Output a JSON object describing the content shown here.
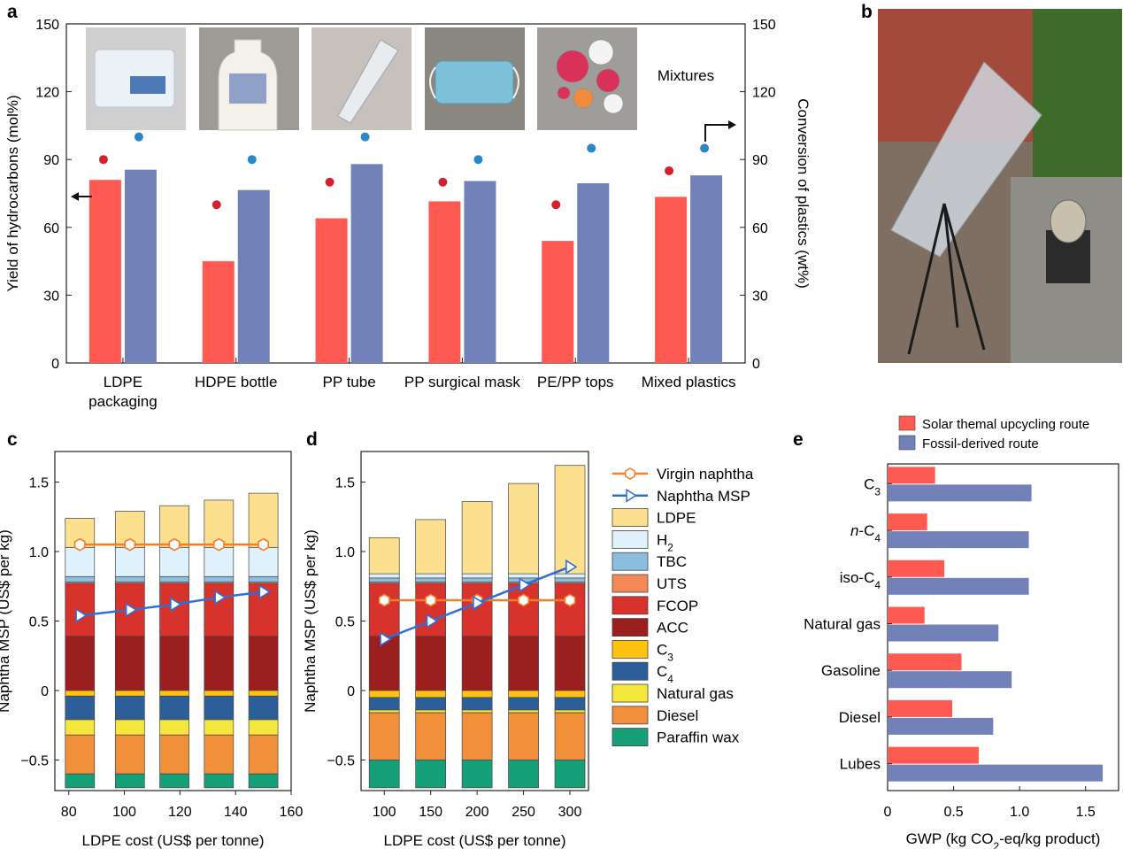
{
  "panel_labels": [
    "a",
    "b",
    "c",
    "d",
    "e"
  ],
  "colors": {
    "yield_bar": "#ff5a52",
    "conversion_bar": "#7282b8",
    "virgin_naphtha": "#f07f2a",
    "naphtha_msp": "#2e6fd6",
    "solar_route": "#ff5a52",
    "fossil_route": "#7282b8"
  },
  "chart_data": [
    {
      "panel": "a",
      "type": "bar",
      "ylabel": "Yield of hydrocarbons (mol%)",
      "ylabel_right": "Conversion of plastics (wt%)",
      "ylim": [
        0,
        150
      ],
      "yticks": [
        0,
        30,
        60,
        90,
        120,
        150
      ],
      "categories": [
        "LDPE packaging",
        "HDPE bottle",
        "PP tube",
        "PP surgical mask",
        "PE/PP tops",
        "Mixed plastics"
      ],
      "category_lines": [
        [
          "LDPE",
          "packaging"
        ],
        [
          "HDPE bottle"
        ],
        [
          "PP tube"
        ],
        [
          "PP surgical mask"
        ],
        [
          "PE/PP tops"
        ],
        [
          "Mixed plastics"
        ]
      ],
      "series": [
        {
          "axis": "left",
          "color": "#ff5a52",
          "values": [
            81,
            45,
            64,
            71.5,
            54,
            73.5
          ]
        },
        {
          "axis": "right",
          "color": "#7282b8",
          "values": [
            85.5,
            76.5,
            88,
            80.5,
            79.5,
            83
          ]
        }
      ],
      "dots": [
        {
          "color": "#d4202a",
          "values": [
            90,
            70,
            80,
            80,
            70,
            85
          ]
        },
        {
          "color": "#2a86c9",
          "values": [
            100,
            90,
            100,
            90,
            95,
            95
          ]
        }
      ],
      "photo_captions": [
        "Mixtures"
      ],
      "photos": [
        "packaging-bag",
        "lotion-bottle",
        "centrifuge-tube",
        "surgical-mask",
        "bottle-caps"
      ]
    },
    {
      "panel": "b",
      "type": "image",
      "description_icon": "solar-concentrator-photo"
    },
    {
      "panel": "c",
      "type": "stacked-bar",
      "xlabel": "LDPE cost (US$ per tonne)",
      "ylabel": "Naphtha MSP (US$ per kg)",
      "xlim": [
        75,
        160
      ],
      "ylim": [
        -0.72,
        1.72
      ],
      "xticks": [
        80,
        100,
        120,
        140,
        160
      ],
      "yticks": [
        -0.5,
        0,
        0.5,
        1.0,
        1.5
      ],
      "ytick_labels": [
        "−0.5",
        "0",
        "0.5",
        "1.0",
        "1.5"
      ],
      "x": [
        84,
        102,
        118,
        134,
        150
      ],
      "positive_stack": [
        {
          "name": "FCOP",
          "color": "#d8322c",
          "from": 0.39,
          "to": 0.77
        },
        {
          "name": "ACC",
          "color": "#9c1f1f",
          "from": 0,
          "to": 0.39
        },
        {
          "name": "UTS",
          "color": "#f58a58",
          "from": 0.77,
          "to": 0.78
        },
        {
          "name": "TBC",
          "color": "#8ebedf",
          "from": 0.78,
          "to": 0.82
        },
        {
          "name": "H2",
          "color": "#dff1fa",
          "from": 0.82,
          "to": 1.03
        }
      ],
      "ldpe_tops": [
        1.24,
        1.29,
        1.33,
        1.37,
        1.42
      ],
      "negative_stack": [
        {
          "name": "C3",
          "color": "#ffc20e",
          "from": 0,
          "to": -0.04
        },
        {
          "name": "C4",
          "color": "#2c5f99",
          "from": -0.04,
          "to": -0.21
        },
        {
          "name": "Natural gas",
          "color": "#f5e63c",
          "from": -0.21,
          "to": -0.32
        },
        {
          "name": "Diesel",
          "color": "#f18f3b",
          "from": -0.32,
          "to": -0.6
        },
        {
          "name": "Paraffin wax",
          "color": "#16a07a",
          "from": -0.6,
          "to": -0.7
        }
      ],
      "virgin_naphtha": [
        1.05,
        1.05,
        1.05,
        1.05,
        1.05
      ],
      "naphtha_msp": [
        0.54,
        0.58,
        0.62,
        0.67,
        0.71
      ]
    },
    {
      "panel": "d",
      "type": "stacked-bar",
      "xlabel": "LDPE cost (US$ per tonne)",
      "ylabel": "Naphtha MSP (US$ per kg)",
      "xlim": [
        75,
        320
      ],
      "ylim": [
        -0.72,
        1.72
      ],
      "xticks": [
        100,
        150,
        200,
        250,
        300
      ],
      "yticks": [
        -0.5,
        0,
        0.5,
        1.0,
        1.5
      ],
      "ytick_labels": [
        "−0.5",
        "0",
        "0.5",
        "1.0",
        "1.5"
      ],
      "x": [
        100,
        150,
        200,
        250,
        300
      ],
      "positive_stack": [
        {
          "name": "FCOP",
          "color": "#d8322c",
          "from": 0.39,
          "to": 0.77
        },
        {
          "name": "ACC",
          "color": "#9c1f1f",
          "from": 0,
          "to": 0.39
        },
        {
          "name": "UTS",
          "color": "#f58a58",
          "from": 0.77,
          "to": 0.78
        },
        {
          "name": "TBC",
          "color": "#8ebedf",
          "from": 0.78,
          "to": 0.81
        },
        {
          "name": "H2",
          "color": "#dff1fa",
          "from": 0.81,
          "to": 0.84
        }
      ],
      "ldpe_tops": [
        1.1,
        1.23,
        1.36,
        1.49,
        1.62
      ],
      "negative_stack": [
        {
          "name": "C3",
          "color": "#ffc20e",
          "from": 0,
          "to": -0.05
        },
        {
          "name": "C4",
          "color": "#2c5f99",
          "from": -0.05,
          "to": -0.14
        },
        {
          "name": "Natural gas",
          "color": "#f5e63c",
          "from": -0.14,
          "to": -0.16
        },
        {
          "name": "Diesel",
          "color": "#f18f3b",
          "from": -0.16,
          "to": -0.5
        },
        {
          "name": "Paraffin wax",
          "color": "#16a07a",
          "from": -0.5,
          "to": -0.7
        }
      ],
      "virgin_naphtha": [
        0.65,
        0.65,
        0.65,
        0.65,
        0.65
      ],
      "naphtha_msp": [
        0.37,
        0.5,
        0.63,
        0.76,
        0.89
      ]
    },
    {
      "panel": "e",
      "type": "bar",
      "orientation": "horizontal",
      "xlabel": "GWP (kg CO2-eq/kg product)",
      "xlim": [
        0,
        1.75
      ],
      "xticks": [
        0,
        0.5,
        1.0,
        1.5
      ],
      "xtick_labels": [
        "0",
        "0.5",
        "1.0",
        "1.5"
      ],
      "categories": [
        "C3",
        "n-C4",
        "iso-C4",
        "Natural gas",
        "Gasoline",
        "Diesel",
        "Lubes"
      ],
      "series": [
        {
          "name": "Solar themal upcycling route",
          "color": "#ff5a52",
          "values": [
            0.36,
            0.3,
            0.43,
            0.28,
            0.56,
            0.49,
            0.69
          ]
        },
        {
          "name": "Fossil-derived route",
          "color": "#7282b8",
          "values": [
            1.09,
            1.07,
            1.07,
            0.84,
            0.94,
            0.8,
            1.63
          ]
        }
      ],
      "legend_placement": "top"
    }
  ],
  "legend_cd": [
    {
      "key": "virgin_naphtha",
      "label": "Virgin naphtha",
      "kind": "line-hex",
      "color": "#f07f2a"
    },
    {
      "key": "naphtha_msp",
      "label": "Naphtha MSP",
      "kind": "line-tri",
      "color": "#2e6fd6"
    },
    {
      "key": "ldpe",
      "label": "LDPE",
      "kind": "box",
      "color": "#fde08e"
    },
    {
      "key": "h2",
      "label": "H2",
      "sub": "2",
      "base": "H",
      "kind": "box",
      "color": "#dff1fa"
    },
    {
      "key": "tbc",
      "label": "TBC",
      "kind": "box",
      "color": "#8ebedf"
    },
    {
      "key": "uts",
      "label": "UTS",
      "kind": "box",
      "color": "#f58a58"
    },
    {
      "key": "fcop",
      "label": "FCOP",
      "kind": "box",
      "color": "#d8322c"
    },
    {
      "key": "acc",
      "label": "ACC",
      "kind": "box",
      "color": "#9c1f1f"
    },
    {
      "key": "c3",
      "label": "C3",
      "sub": "3",
      "base": "C",
      "kind": "box",
      "color": "#ffc20e"
    },
    {
      "key": "c4",
      "label": "C4",
      "sub": "4",
      "base": "C",
      "kind": "box",
      "color": "#2c5f99"
    },
    {
      "key": "natural_gas",
      "label": "Natural gas",
      "kind": "box",
      "color": "#f5e63c"
    },
    {
      "key": "diesel",
      "label": "Diesel",
      "kind": "box",
      "color": "#f18f3b"
    },
    {
      "key": "paraffin_wax",
      "label": "Paraffin wax",
      "kind": "box",
      "color": "#16a07a"
    }
  ]
}
